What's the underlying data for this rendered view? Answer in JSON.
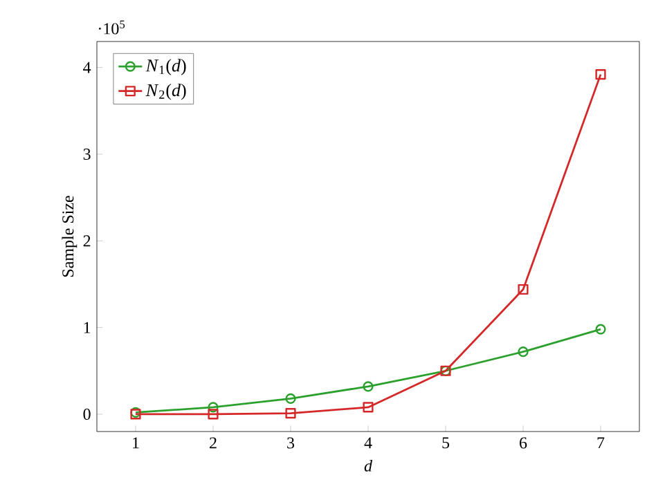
{
  "chart_data": {
    "type": "line",
    "xlabel": "d",
    "ylabel": "Sample Size",
    "annotations": [
      "·10$^{5}$"
    ],
    "x": [
      1,
      2,
      3,
      4,
      5,
      6,
      7
    ],
    "series": [
      {
        "name": "*N*$_{1}$(*d*)",
        "color": "#2ca02c",
        "marker": "circle",
        "values": [
          0.02,
          0.08,
          0.18,
          0.32,
          0.5,
          0.72,
          0.98
        ]
      },
      {
        "name": "*N*$_{2}$(*d*)",
        "color": "#d62728",
        "marker": "square",
        "values": [
          0.0,
          0.0,
          0.01,
          0.08,
          0.5,
          1.44,
          3.92
        ]
      }
    ],
    "xlim": [
      0.5,
      7.5
    ],
    "ylim": [
      -0.2,
      4.3
    ],
    "xticks": [
      1,
      2,
      3,
      4,
      5,
      6,
      7
    ],
    "yticks": [
      0,
      1,
      2,
      3,
      4
    ],
    "legend": "top left",
    "line_style": "solid"
  }
}
